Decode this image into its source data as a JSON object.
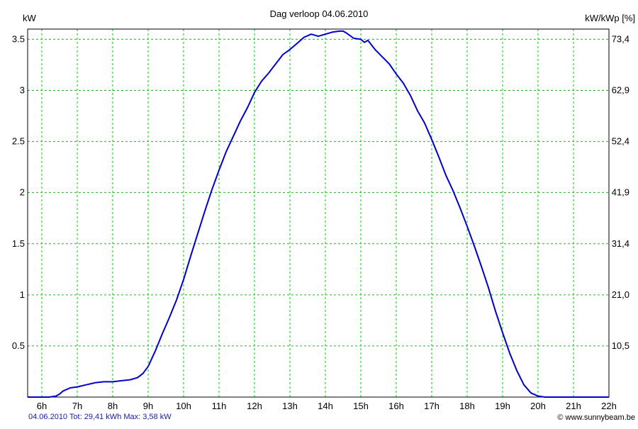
{
  "chart_data": {
    "type": "line",
    "title": "Dag  verloop 04.06.2010",
    "ylabel_left": "kW",
    "ylabel_right": "kW/kWp [%]",
    "xlabel": "",
    "x_ticks": [
      "6h",
      "7h",
      "8h",
      "9h",
      "10h",
      "11h",
      "12h",
      "13h",
      "14h",
      "15h",
      "16h",
      "17h",
      "18h",
      "19h",
      "20h",
      "21h",
      "22h"
    ],
    "xlim": [
      5.6,
      22
    ],
    "ylim": [
      0,
      3.6
    ],
    "y_ticks_left": [
      "0.5",
      "1",
      "1.5",
      "2",
      "2.5",
      "3",
      "3.5"
    ],
    "y_ticks_left_values": [
      0.5,
      1,
      1.5,
      2,
      2.5,
      3,
      3.5
    ],
    "y_ticks_right": [
      "10,5",
      "21,0",
      "31,4",
      "41,9",
      "52,4",
      "62,9",
      "73,4"
    ],
    "grid": true,
    "grid_color": "#00cc00",
    "line_color": "#0000cc",
    "series": [
      {
        "x": [
          5.6,
          6.1,
          6.2,
          6.4,
          6.5,
          6.6,
          6.8,
          7.0,
          7.25,
          7.5,
          7.75,
          8.0,
          8.25,
          8.5,
          8.7,
          8.85,
          9.0,
          9.2,
          9.4,
          9.6,
          9.8,
          10.0,
          10.2,
          10.4,
          10.6,
          10.8,
          11.0,
          11.2,
          11.4,
          11.6,
          11.8,
          12.0,
          12.2,
          12.4,
          12.6,
          12.8,
          13.0,
          13.2,
          13.4,
          13.6,
          13.8,
          14.0,
          14.2,
          14.4,
          14.5,
          14.6,
          14.8,
          15.0,
          15.1,
          15.2,
          15.4,
          15.6,
          15.8,
          16.0,
          16.2,
          16.4,
          16.6,
          16.8,
          17.0,
          17.2,
          17.4,
          17.6,
          17.8,
          18.0,
          18.2,
          18.4,
          18.6,
          18.8,
          19.0,
          19.2,
          19.4,
          19.6,
          19.8,
          20.0,
          20.2,
          20.4,
          20.6,
          20.8,
          21.0,
          21.2,
          21.4,
          21.6,
          21.8,
          22.0
        ],
        "values": [
          0.0,
          0.0,
          0.0,
          0.01,
          0.03,
          0.06,
          0.09,
          0.1,
          0.12,
          0.14,
          0.15,
          0.15,
          0.16,
          0.17,
          0.19,
          0.23,
          0.3,
          0.45,
          0.62,
          0.78,
          0.95,
          1.15,
          1.38,
          1.6,
          1.82,
          2.03,
          2.22,
          2.4,
          2.55,
          2.7,
          2.83,
          2.98,
          3.09,
          3.17,
          3.26,
          3.35,
          3.4,
          3.46,
          3.52,
          3.55,
          3.53,
          3.55,
          3.57,
          3.58,
          3.58,
          3.56,
          3.51,
          3.5,
          3.47,
          3.49,
          3.4,
          3.33,
          3.26,
          3.16,
          3.07,
          2.95,
          2.8,
          2.68,
          2.52,
          2.35,
          2.17,
          2.02,
          1.85,
          1.67,
          1.48,
          1.28,
          1.07,
          0.84,
          0.63,
          0.43,
          0.26,
          0.12,
          0.04,
          0.01,
          0.0,
          0.0,
          0.0,
          0.0,
          0.0,
          0.0,
          0.0,
          0.0,
          0.0,
          0.0
        ]
      }
    ]
  },
  "footer": {
    "summary": "04.06.2010 Tot: 29,41 kWh Max: 3,58 kW",
    "credit": "© www.sunnybeam.be"
  }
}
